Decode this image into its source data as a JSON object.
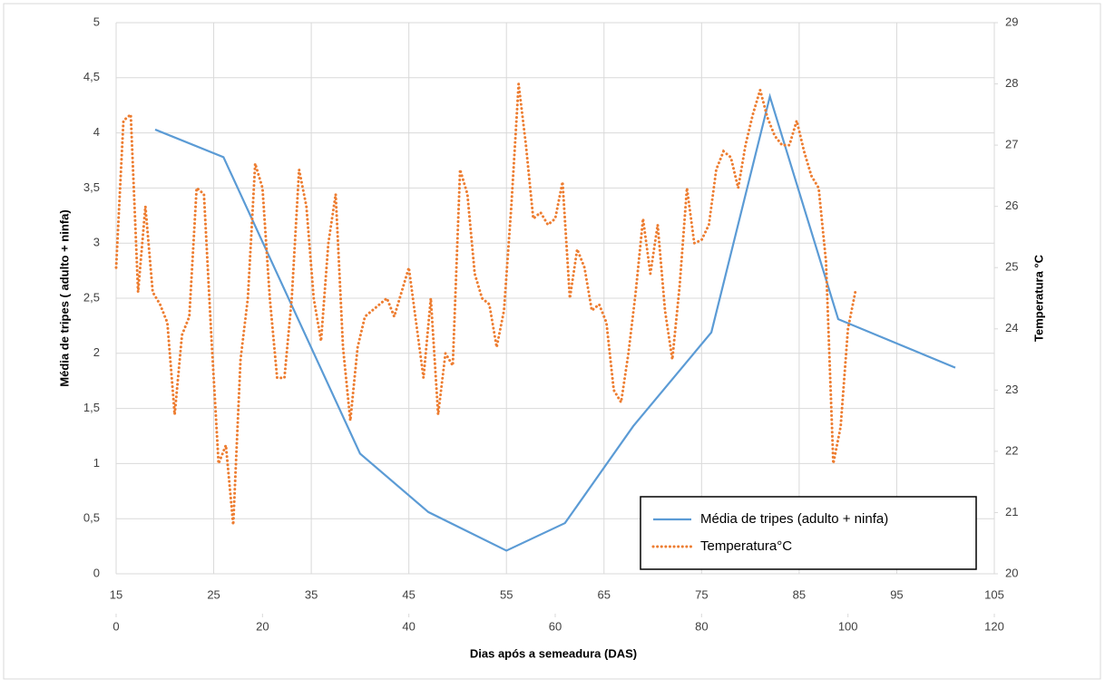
{
  "chart_data": {
    "type": "line",
    "xlabel": "Dias após a semeadura (DAS)",
    "ylabel": "Média de  tripes ( adulto + ninfa)",
    "y2label": "Temperatura  °C",
    "xlim": [
      15,
      105
    ],
    "xticks": [
      15,
      25,
      35,
      45,
      55,
      65,
      75,
      85,
      95,
      105
    ],
    "x2lim": [
      0,
      120
    ],
    "x2ticks": [
      0,
      20,
      40,
      60,
      80,
      100,
      120
    ],
    "ylim": [
      0,
      5
    ],
    "yticks": [
      0,
      {
        "value": 0.5,
        "label": "0,5"
      },
      1,
      {
        "value": 1.5,
        "label": "1,5"
      },
      2,
      {
        "value": 2.5,
        "label": "2,5"
      },
      3,
      {
        "value": 3.5,
        "label": "3,5"
      },
      4,
      {
        "value": 4.5,
        "label": "4,5"
      },
      5
    ],
    "y2lim": [
      20,
      29
    ],
    "y2ticks": [
      20,
      21,
      22,
      23,
      24,
      25,
      26,
      27,
      28,
      29
    ],
    "grid": true,
    "legend": "lower right",
    "series": [
      {
        "name": "Média de tripes (adulto + ninfa)",
        "color": "#5b9bd5",
        "style": "solid",
        "axis": "y",
        "x": [
          19,
          26,
          40,
          47,
          55,
          61,
          68,
          76,
          82,
          89,
          101
        ],
        "values": [
          4.03,
          3.78,
          1.09,
          0.56,
          0.21,
          0.46,
          1.34,
          2.19,
          4.33,
          2.31,
          1.87
        ]
      },
      {
        "name": "Temperatura°C",
        "color": "#ed7d31",
        "style": "dotted",
        "axis": "y2",
        "xaxis": "x2",
        "x": [
          0,
          1,
          2,
          3,
          4,
          5,
          6,
          7,
          8,
          9,
          10,
          11,
          12,
          13,
          14,
          15,
          16,
          17,
          18,
          19,
          20,
          21,
          22,
          23,
          24,
          25,
          26,
          27,
          28,
          29,
          30,
          31,
          32,
          33,
          34,
          35,
          36,
          37,
          38,
          39,
          40,
          41,
          42,
          43,
          44,
          45,
          46,
          47,
          48,
          49,
          50,
          51,
          52,
          53,
          54,
          55,
          56,
          57,
          58,
          59,
          60,
          61,
          62,
          63,
          64,
          65,
          66,
          67,
          68,
          69,
          70,
          71,
          72,
          73,
          74,
          75,
          76,
          77,
          78,
          79,
          80,
          81,
          82,
          83,
          84,
          85,
          86,
          87,
          88,
          89,
          90,
          91,
          92,
          93,
          94,
          95,
          96,
          97,
          98,
          99,
          100,
          101
        ],
        "values": [
          25.0,
          27.4,
          27.5,
          24.6,
          26.0,
          24.6,
          24.4,
          24.1,
          22.6,
          23.9,
          24.2,
          26.3,
          26.2,
          23.9,
          21.8,
          22.1,
          20.8,
          23.5,
          24.5,
          26.7,
          26.3,
          24.5,
          23.2,
          23.2,
          24.5,
          26.6,
          26.0,
          24.5,
          23.8,
          25.4,
          26.2,
          23.7,
          22.5,
          23.7,
          24.2,
          24.3,
          24.4,
          24.5,
          24.2,
          24.6,
          25.0,
          24.1,
          23.2,
          24.5,
          22.6,
          23.6,
          23.4,
          26.6,
          26.2,
          24.9,
          24.5,
          24.4,
          23.7,
          24.3,
          26.0,
          28.0,
          27.0,
          25.8,
          25.9,
          25.7,
          25.8,
          26.4,
          24.5,
          25.3,
          25.0,
          24.3,
          24.4,
          24.1,
          23.0,
          22.8,
          23.6,
          24.6,
          25.8,
          24.9,
          25.7,
          24.3,
          23.5,
          24.7,
          26.3,
          25.4,
          25.45,
          25.7,
          26.6,
          26.9,
          26.8,
          26.3,
          27.0,
          27.5,
          27.9,
          27.45,
          27.15,
          27.0,
          27.0,
          27.4,
          26.9,
          26.5,
          26.3,
          25.1,
          21.8,
          22.4,
          24.0,
          24.6
        ]
      }
    ]
  }
}
